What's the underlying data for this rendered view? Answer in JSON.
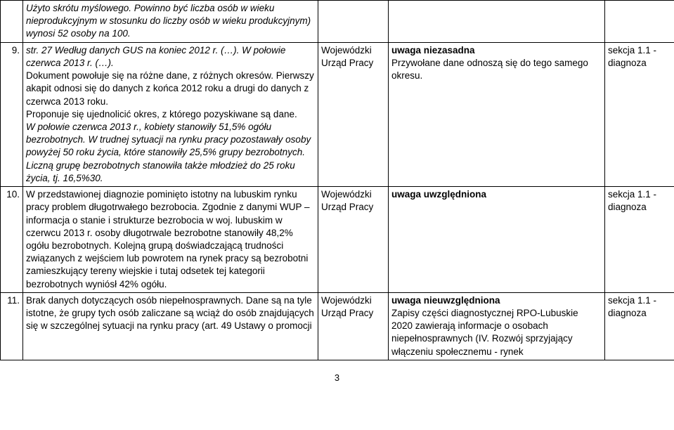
{
  "page_number": "3",
  "rows": [
    {
      "num": "",
      "body_it": "Użyto skrótu myślowego. Powinno być liczba osób w wieku nieprodukcyjnym w stosunku do liczby osób w wieku produkcyjnym) wynosi 52 osoby na 100.",
      "source": "",
      "response": "",
      "section": ""
    },
    {
      "num": "9.",
      "body_pt0": "str. 27 Według danych GUS na koniec 2012 r. (…). W połowie czerwca 2013 r. (…).",
      "body_p1": "Dokument powołuje się na różne dane, z różnych okresów. Pierwszy akapit odnosi się do danych z końca 2012 roku a drugi do danych z czerwca 2013 roku.",
      "body_p2": "Proponuje się ujednolicić okres, z którego pozyskiwane są dane.",
      "body_p3": "W połowie czerwca 2013 r., kobiety stanowiły 51,5% ogółu bezrobotnych. W trudnej sytuacji na rynku pracy pozostawały osoby powyżej 50 roku życia, które stanowiły 25,5% grupy bezrobotnych. Liczną grupę bezrobotnych stanowiła także młodzież do 25 roku życia, tj. 16,5%30.",
      "source": "Wojewódzki Urząd Pracy",
      "resp_b": "uwaga niezasadna",
      "resp_t": "Przywołane dane odnoszą się do tego samego okresu.",
      "section": "sekcja 1.1 - diagnoza"
    },
    {
      "num": "10.",
      "body": "W przedstawionej diagnozie pominięto istotny na lubuskim rynku pracy problem długotrwałego bezrobocia. Zgodnie z danymi WUP – informacja o stanie i strukturze bezrobocia w woj. lubuskim w czerwcu 2013 r. osoby długotrwale bezrobotne stanowiły 48,2% ogółu bezrobotnych. Kolejną grupą doświadczającą trudności związanych z wejściem lub powrotem na rynek pracy są bezrobotni zamieszkujący tereny wiejskie i tutaj odsetek tej kategorii bezrobotnych wyniósł 42% ogółu.",
      "source": "Wojewódzki Urząd Pracy",
      "resp_b": "uwaga uwzględniona",
      "section": "sekcja 1.1 - diagnoza"
    },
    {
      "num": "11.",
      "body": "Brak danych dotyczących osób niepełnosprawnych. Dane są na tyle istotne, że grupy tych osób zaliczane są wciąż do osób znajdujących się w szczególnej sytuacji na rynku pracy (art. 49 Ustawy o promocji",
      "source": "Wojewódzki Urząd Pracy",
      "resp_b": "uwaga nieuwzględniona",
      "resp_t": "Zapisy części diagnostycznej RPO-Lubuskie 2020 zawierają informacje o osobach niepełnosprawnych (IV. Rozwój sprzyjający włączeniu społecznemu - rynek",
      "section": "sekcja 1.1 - diagnoza"
    }
  ]
}
